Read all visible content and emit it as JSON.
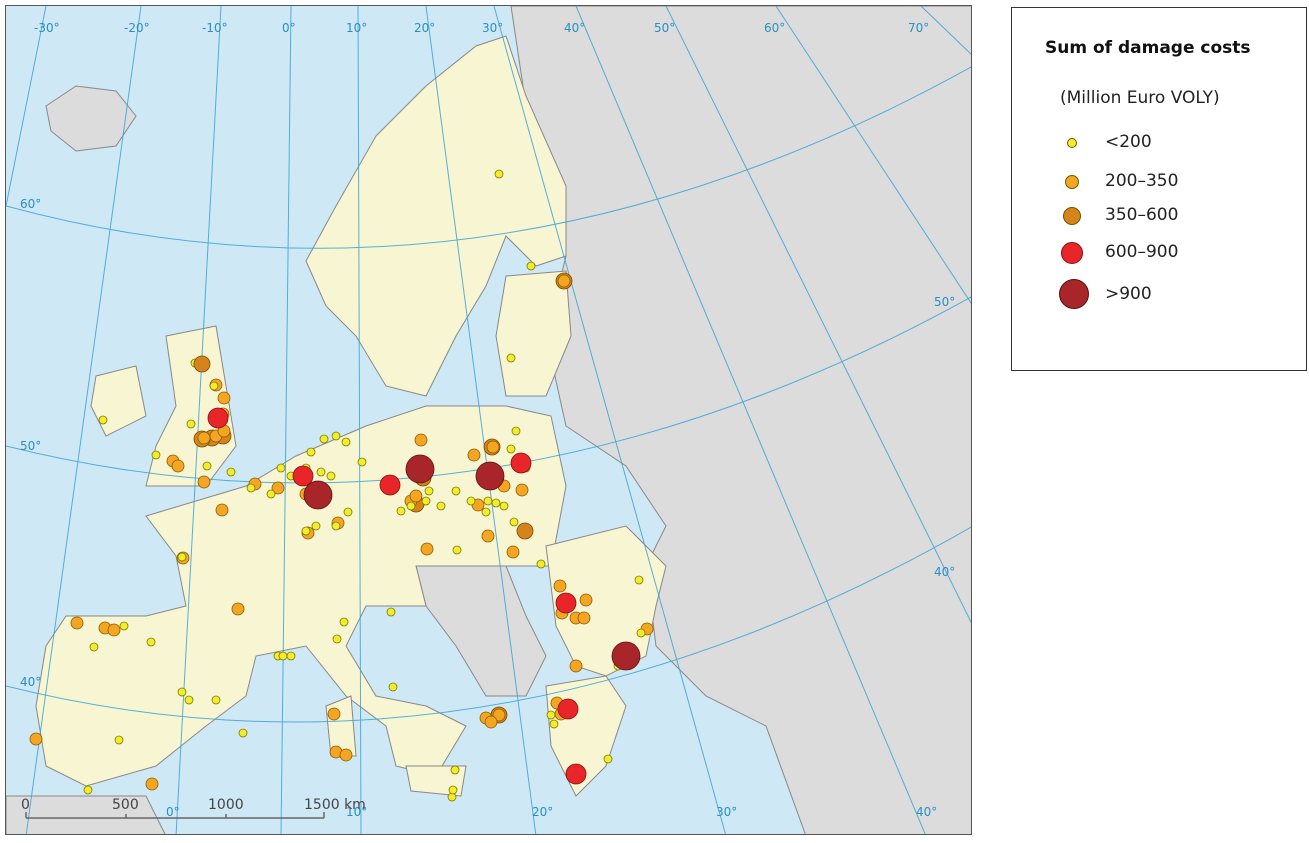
{
  "legend": {
    "title": "Sum of damage costs",
    "subtitle": "(Million Euro VOLY)",
    "classes": [
      {
        "label": "<200",
        "color": "#f3ec2c",
        "stroke": "#7a7a00"
      },
      {
        "label": "200–350",
        "color": "#f4a623",
        "stroke": "#8a5a00"
      },
      {
        "label": "350–600",
        "color": "#d4841a",
        "stroke": "#7a4a00"
      },
      {
        "label": "600–900",
        "color": "#e8262a",
        "stroke": "#8a1010"
      },
      {
        "label": ">900",
        "color": "#a8262a",
        "stroke": "#5a1010"
      }
    ]
  },
  "graticule": {
    "top_labels": [
      "-30°",
      "-20°",
      "-10°",
      "0°",
      "10°",
      "20°",
      "30°",
      "40°",
      "50°",
      "60°",
      "70°"
    ],
    "left_labels": [
      "60°",
      "50°",
      "40°"
    ],
    "right_labels": [
      "50°",
      "40°"
    ],
    "bottom_labels": [
      "0°",
      "10°",
      "20°",
      "30°",
      "40°"
    ]
  },
  "scale_bar": {
    "labels": [
      "0",
      "500",
      "1000",
      "1500 km"
    ]
  },
  "colors": {
    "sea": "#cfe8f5",
    "eu_land": "#f7f5d2",
    "non_eu_land": "#dcdcdc",
    "border": "#777777",
    "graticule": "#3aa3d6"
  },
  "facilities": [
    {
      "id": "uk-1",
      "cls": 3
    },
    {
      "id": "uk-2",
      "cls": 2
    },
    {
      "id": "benelux-1",
      "cls": 3
    },
    {
      "id": "de-1",
      "cls": 4
    },
    {
      "id": "de-2",
      "cls": 4
    },
    {
      "id": "de-3",
      "cls": 3
    },
    {
      "id": "pl-1",
      "cls": 4
    },
    {
      "id": "pl-2",
      "cls": 3
    },
    {
      "id": "ro-1",
      "cls": 3
    },
    {
      "id": "bg-1",
      "cls": 4
    },
    {
      "id": "gr-1",
      "cls": 3
    },
    {
      "id": "gr-2",
      "cls": 3
    }
  ]
}
